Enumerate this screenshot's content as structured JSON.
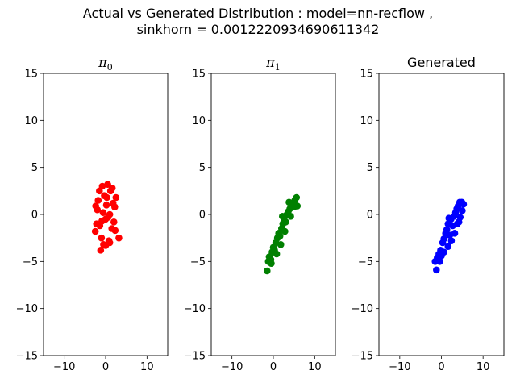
{
  "figure": {
    "title_line1": "Actual vs Generated Distribution : model=nn-recflow ,",
    "title_line2": "sinkhorn = 0.0012220934690611342"
  },
  "chart_data": [
    {
      "type": "scatter",
      "title": "π0",
      "title_main": "π",
      "title_sub": "0",
      "xlabel": "",
      "ylabel": "",
      "xlim": [
        -15,
        15
      ],
      "ylim": [
        -15,
        15
      ],
      "xticks": [
        -10,
        0,
        10
      ],
      "yticks": [
        -15,
        -10,
        -5,
        0,
        5,
        10,
        15
      ],
      "grid": false,
      "color": "#ff0000",
      "points": [
        [
          -2.5,
          -1.8
        ],
        [
          -2.2,
          -1.0
        ],
        [
          -2.0,
          0.5
        ],
        [
          -1.8,
          1.5
        ],
        [
          -1.5,
          2.5
        ],
        [
          -1.2,
          -3.8
        ],
        [
          -1.0,
          -2.5
        ],
        [
          -0.8,
          3.0
        ],
        [
          -0.5,
          -3.2
        ],
        [
          -0.3,
          2.0
        ],
        [
          0.0,
          -0.5
        ],
        [
          0.2,
          1.0
        ],
        [
          0.5,
          3.2
        ],
        [
          0.8,
          -2.8
        ],
        [
          1.0,
          0.0
        ],
        [
          1.2,
          2.5
        ],
        [
          1.5,
          -1.5
        ],
        [
          1.8,
          1.2
        ],
        [
          2.0,
          -0.8
        ],
        [
          2.2,
          0.8
        ],
        [
          2.5,
          1.8
        ],
        [
          3.2,
          -2.5
        ],
        [
          0.0,
          -3.3
        ],
        [
          -0.6,
          0.2
        ],
        [
          0.6,
          -0.3
        ],
        [
          1.0,
          -3.0
        ],
        [
          -1.4,
          -1.2
        ],
        [
          1.6,
          2.8
        ],
        [
          -2.4,
          0.9
        ],
        [
          0.3,
          1.8
        ],
        [
          -0.9,
          -0.7
        ],
        [
          2.3,
          -1.7
        ]
      ]
    },
    {
      "type": "scatter",
      "title": "π1",
      "title_main": "π",
      "title_sub": "1",
      "xlabel": "",
      "ylabel": "",
      "xlim": [
        -15,
        15
      ],
      "ylim": [
        -15,
        15
      ],
      "xticks": [
        -10,
        0,
        10
      ],
      "yticks": [
        -15,
        -10,
        -5,
        0,
        5,
        10,
        15
      ],
      "grid": false,
      "color": "#008000",
      "points": [
        [
          -1.5,
          -6.0
        ],
        [
          -1.2,
          -5.0
        ],
        [
          -1.0,
          -4.5
        ],
        [
          -0.6,
          -4.8
        ],
        [
          -0.3,
          -4.0
        ],
        [
          0.0,
          -3.5
        ],
        [
          0.3,
          -3.8
        ],
        [
          0.6,
          -3.0
        ],
        [
          1.0,
          -2.5
        ],
        [
          1.3,
          -2.0
        ],
        [
          1.6,
          -2.3
        ],
        [
          2.0,
          -1.5
        ],
        [
          2.3,
          -1.0
        ],
        [
          2.6,
          -0.5
        ],
        [
          3.0,
          -0.8
        ],
        [
          3.3,
          0.0
        ],
        [
          3.6,
          0.3
        ],
        [
          4.0,
          0.6
        ],
        [
          4.4,
          0.9
        ],
        [
          4.8,
          1.2
        ],
        [
          5.2,
          1.5
        ],
        [
          5.6,
          1.8
        ],
        [
          5.0,
          0.8
        ],
        [
          4.2,
          -0.2
        ],
        [
          2.8,
          -1.8
        ],
        [
          1.8,
          -3.2
        ],
        [
          0.8,
          -4.2
        ],
        [
          -0.5,
          -5.2
        ],
        [
          5.8,
          0.9
        ],
        [
          3.8,
          1.3
        ],
        [
          2.2,
          -0.2
        ]
      ]
    },
    {
      "type": "scatter",
      "title": "Generated",
      "xlabel": "",
      "ylabel": "",
      "xlim": [
        -15,
        15
      ],
      "ylim": [
        -15,
        15
      ],
      "xticks": [
        -10,
        0,
        10
      ],
      "yticks": [
        -15,
        -10,
        -5,
        0,
        5,
        10,
        15
      ],
      "grid": false,
      "color": "#0000ff",
      "points": [
        [
          -1.2,
          -5.9
        ],
        [
          -1.5,
          -5.0
        ],
        [
          -1.0,
          -4.6
        ],
        [
          -0.6,
          -4.2
        ],
        [
          -0.2,
          -3.8
        ],
        [
          0.0,
          -4.4
        ],
        [
          0.3,
          -3.0
        ],
        [
          0.6,
          -2.6
        ],
        [
          1.0,
          -2.0
        ],
        [
          1.3,
          -1.6
        ],
        [
          1.6,
          -1.0
        ],
        [
          2.0,
          -2.2
        ],
        [
          2.3,
          -0.5
        ],
        [
          2.7,
          -1.2
        ],
        [
          3.0,
          -0.2
        ],
        [
          3.4,
          0.2
        ],
        [
          3.7,
          0.6
        ],
        [
          4.0,
          0.9
        ],
        [
          4.4,
          1.3
        ],
        [
          4.9,
          1.3
        ],
        [
          5.3,
          1.1
        ],
        [
          5.0,
          0.4
        ],
        [
          4.5,
          -0.3
        ],
        [
          3.8,
          -1.0
        ],
        [
          3.2,
          -2.0
        ],
        [
          2.4,
          -2.8
        ],
        [
          1.6,
          -3.4
        ],
        [
          0.6,
          -4.0
        ],
        [
          -0.4,
          -5.0
        ],
        [
          4.2,
          -0.8
        ],
        [
          1.8,
          -0.4
        ]
      ]
    }
  ]
}
